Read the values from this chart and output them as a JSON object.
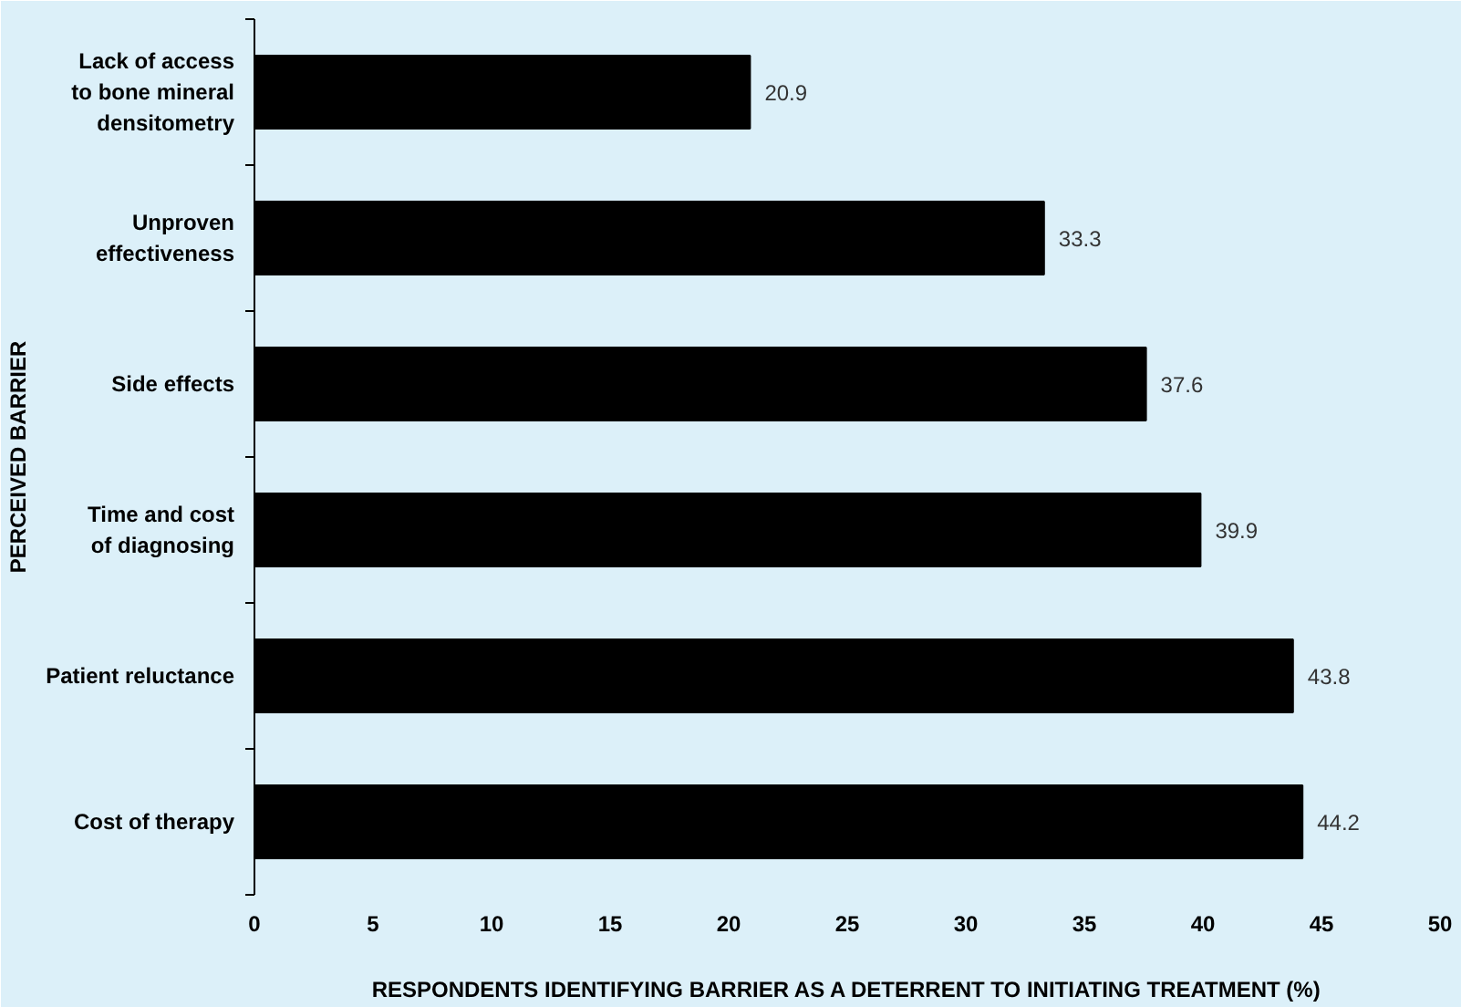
{
  "chart_data": {
    "type": "bar",
    "orientation": "horizontal",
    "xlabel": "RESPONDENTS IDENTIFYING BARRIER AS A DETERRENT TO INITIATING TREATMENT (%)",
    "ylabel": "PERCEIVED BARRIER",
    "categories": [
      "Lack of access\nto bone mineral\ndensitometry",
      "Unproven\neffectiveness",
      "Side effects",
      "Time and cost\nof diagnosing",
      "Patient reluctance",
      "Cost of therapy"
    ],
    "values": [
      20.9,
      33.3,
      37.6,
      39.9,
      43.8,
      44.2
    ],
    "color": "#000000",
    "data_labels": true,
    "xlim": [
      0,
      50
    ],
    "xticks": [
      0,
      5,
      10,
      15,
      20,
      25,
      30,
      35,
      40,
      45,
      50
    ],
    "grid": false
  }
}
